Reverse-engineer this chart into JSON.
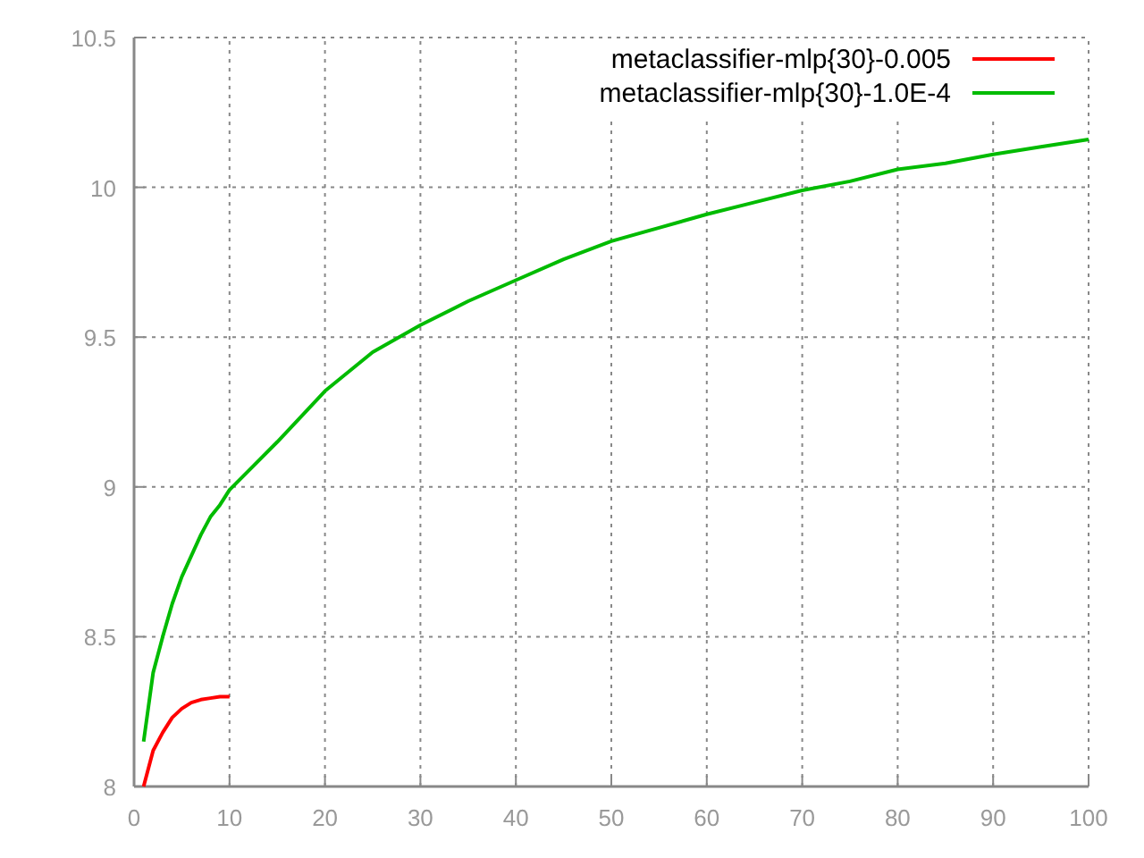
{
  "chart_data": {
    "type": "line",
    "xlim": [
      0,
      100
    ],
    "ylim": [
      8,
      10.5
    ],
    "xticks": [
      0,
      10,
      20,
      30,
      40,
      50,
      60,
      70,
      80,
      90,
      100
    ],
    "yticks": [
      8,
      8.5,
      9,
      9.5,
      10,
      10.5
    ],
    "grid": true,
    "legend": "top right",
    "line_style": "solid",
    "marker": "none",
    "series": [
      {
        "name": "metaclassifier-mlp{30}-0.005",
        "color": "#ff0000",
        "x": [
          1,
          2,
          3,
          4,
          5,
          6,
          7,
          8,
          9,
          10
        ],
        "values": [
          8.0,
          8.12,
          8.18,
          8.23,
          8.26,
          8.28,
          8.29,
          8.295,
          8.3,
          8.3
        ]
      },
      {
        "name": "metaclassifier-mlp{30}-1.0E-4",
        "color": "#00bb00",
        "x": [
          1,
          2,
          3,
          4,
          5,
          6,
          7,
          8,
          9,
          10,
          15,
          20,
          25,
          30,
          35,
          40,
          45,
          50,
          55,
          60,
          65,
          70,
          75,
          80,
          85,
          90,
          95,
          100
        ],
        "values": [
          8.15,
          8.38,
          8.5,
          8.61,
          8.7,
          8.77,
          8.84,
          8.9,
          8.94,
          8.99,
          9.15,
          9.32,
          9.45,
          9.54,
          9.62,
          9.69,
          9.76,
          9.82,
          9.865,
          9.91,
          9.95,
          9.99,
          10.02,
          10.06,
          10.08,
          10.11,
          10.135,
          10.16
        ]
      }
    ]
  }
}
